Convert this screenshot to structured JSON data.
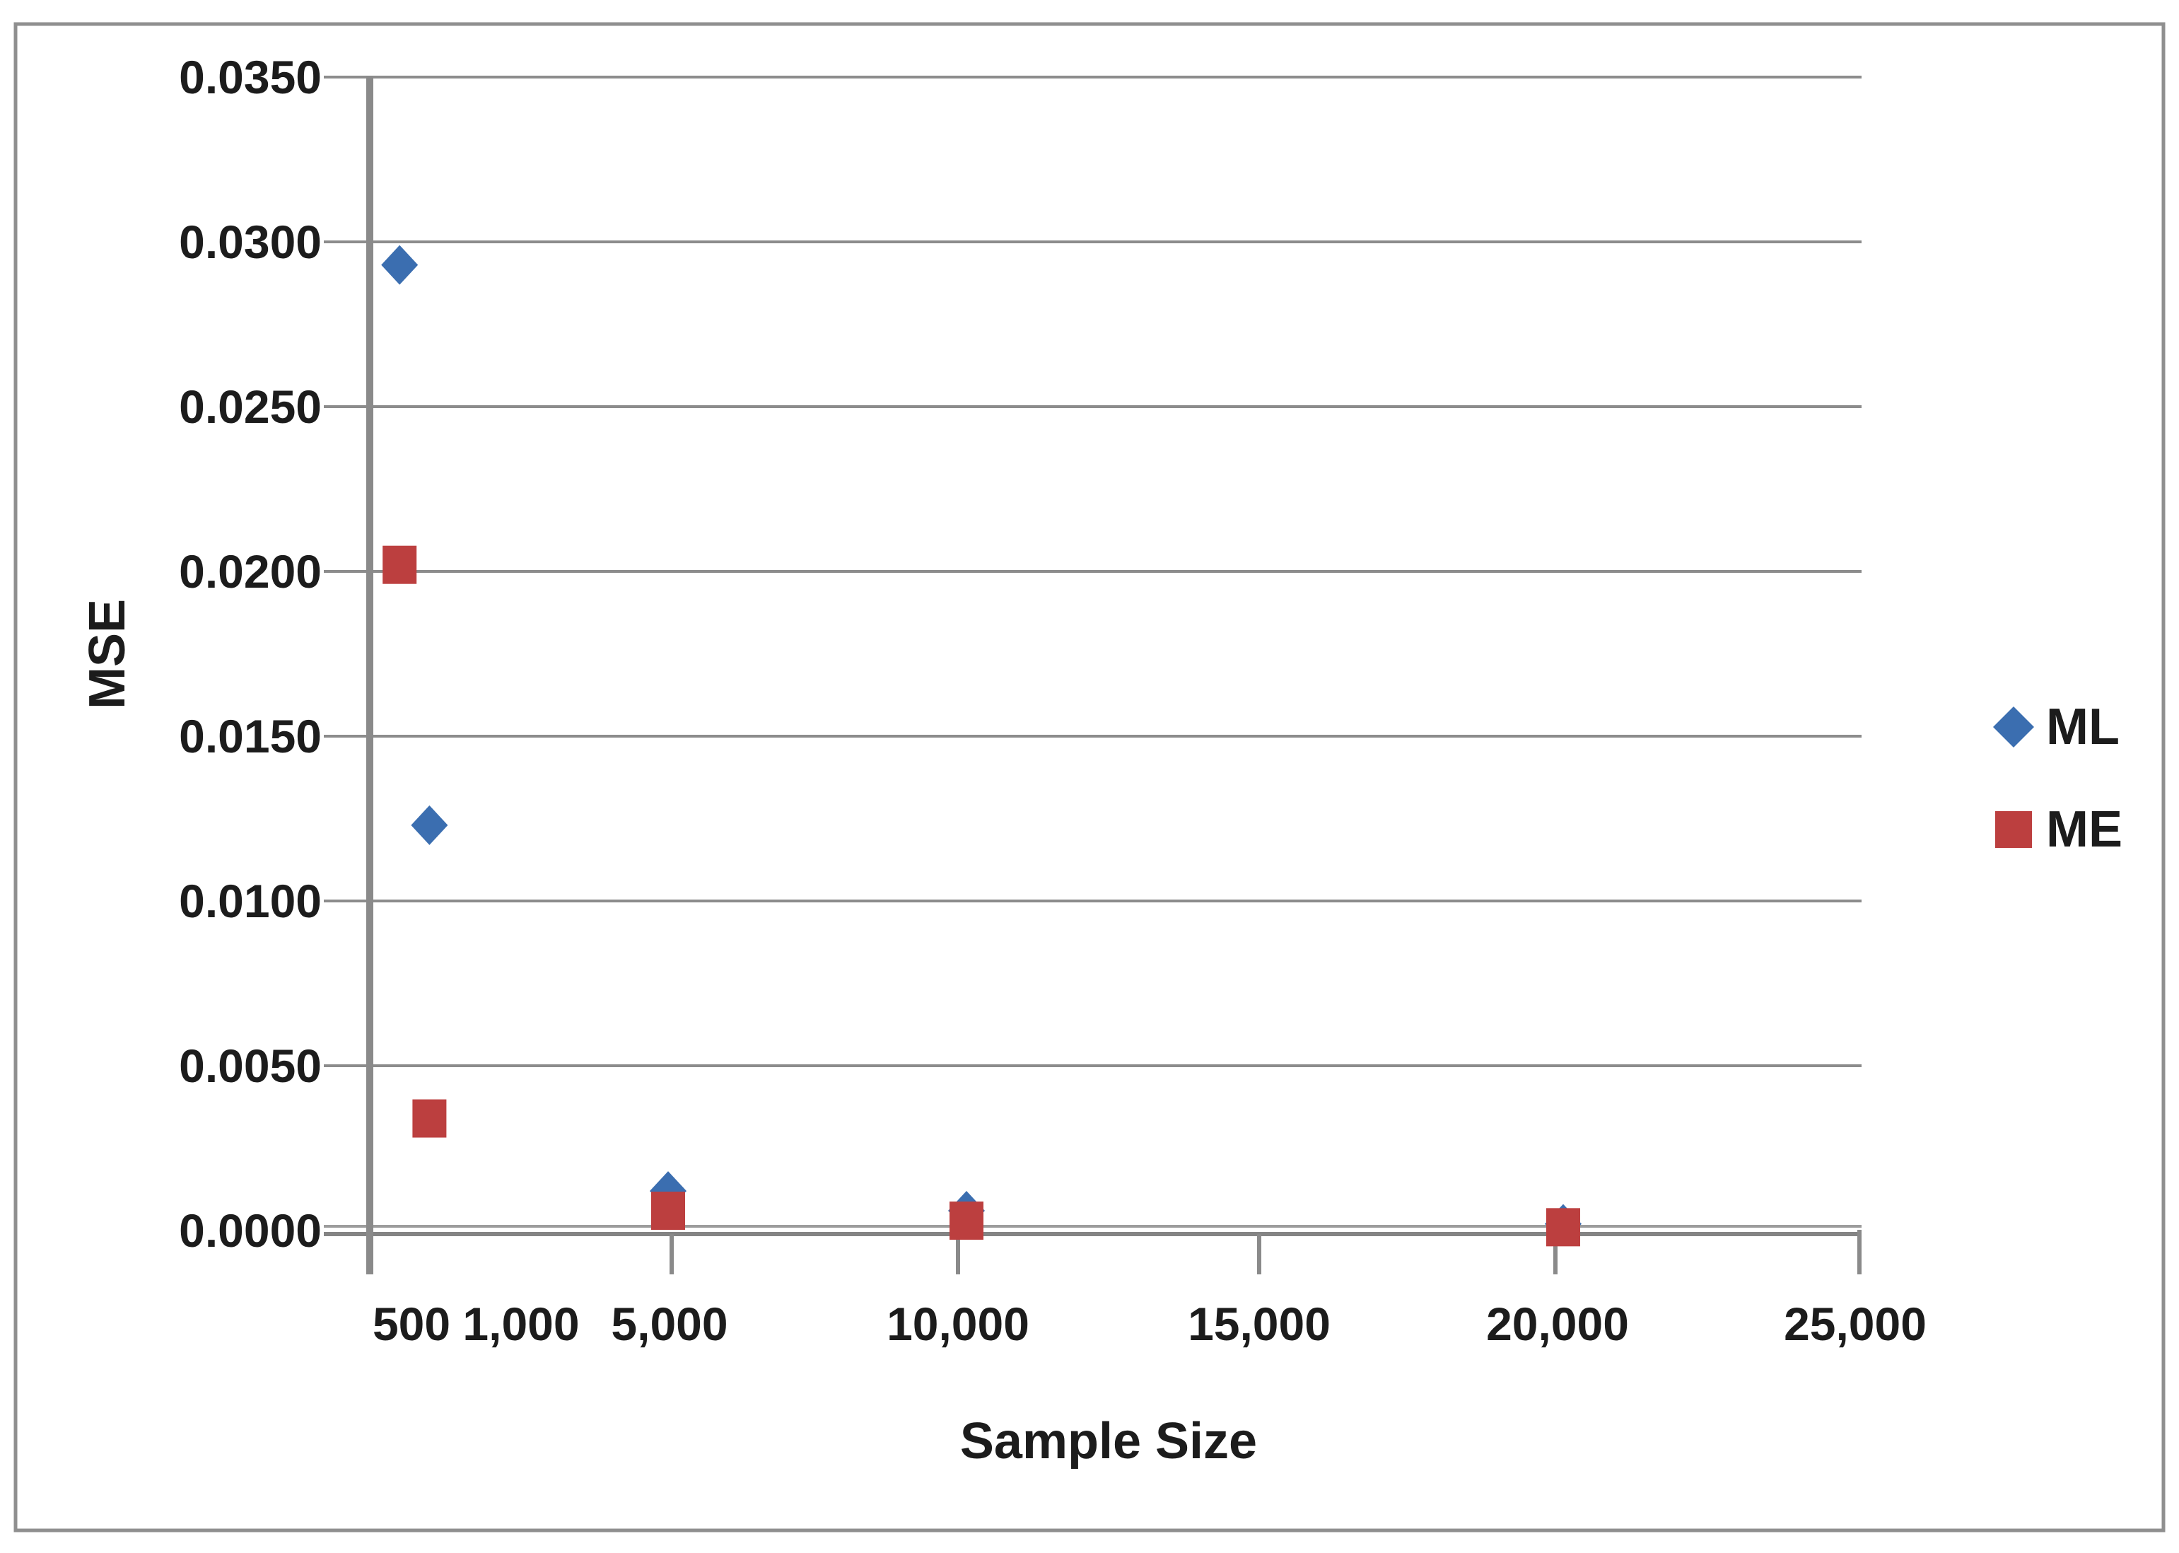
{
  "figure": {
    "background": "#ffffff",
    "border_color": "#8f8f8f"
  },
  "chart_data": {
    "type": "scatter",
    "title": "",
    "xlabel": "Sample Size",
    "ylabel": "MSE",
    "xlim": [
      0,
      25000
    ],
    "ylim": [
      0.0,
      0.035
    ],
    "grid": true,
    "legend_position": "right-middle",
    "x_tick_labels": [
      "500",
      "1,000",
      "5,000",
      "10,000",
      "15,000",
      "20,000",
      "25,000"
    ],
    "y_tick_labels": [
      "0.0000",
      "0.0050",
      "0.0100",
      "0.0150",
      "0.0200",
      "0.0250",
      "0.0300",
      "0.0350"
    ],
    "series": [
      {
        "name": "ML",
        "marker": "diamond",
        "color": "#3b6eb0",
        "x": [
          500,
          1000,
          5000,
          10000,
          20000
        ],
        "y": [
          0.0293,
          0.0123,
          0.0012,
          0.0006,
          0.0002
        ]
      },
      {
        "name": "ME",
        "marker": "square",
        "color": "#bc3f3f",
        "x": [
          500,
          1000,
          5000,
          10000,
          20000
        ],
        "y": [
          0.0202,
          0.0034,
          0.0006,
          0.0003,
          0.0001
        ]
      }
    ]
  }
}
